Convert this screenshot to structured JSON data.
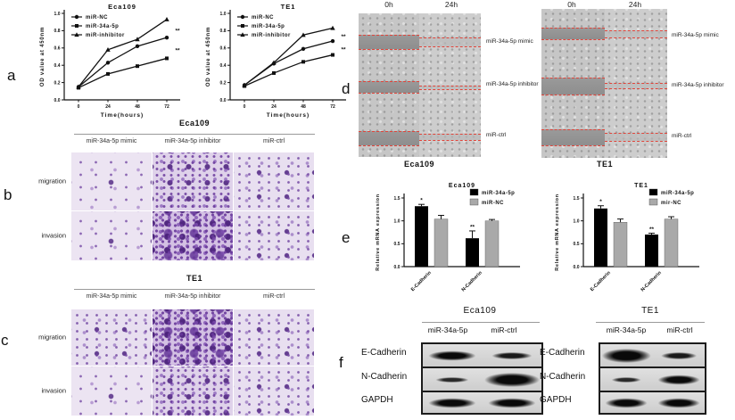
{
  "panels": {
    "a": {
      "letter": "a"
    },
    "b": {
      "letter": "b",
      "title": "Eca109",
      "column_labels": [
        "miR-34a-5p mimic",
        "miR-34a-5p inhibitor",
        "miR-ctrl"
      ],
      "row_labels": [
        "migration",
        "invasion"
      ],
      "staining_density": [
        [
          "sparse",
          "dense",
          "medium"
        ],
        [
          "sparse",
          "verydense",
          "medium"
        ]
      ]
    },
    "c": {
      "letter": "c",
      "title": "TE1",
      "column_labels": [
        "miR-34a-5p mimic",
        "miR-34a-5p inhibitor",
        "miR-ctrl"
      ],
      "row_labels": [
        "migration",
        "invasion"
      ],
      "staining_density": [
        [
          "medium",
          "verydense",
          "medium"
        ],
        [
          "sparse",
          "dense",
          "medium"
        ]
      ]
    },
    "d": {
      "letter": "d",
      "blocks": [
        {
          "cell_line": "Eca109",
          "time_labels": [
            "0h",
            "24h"
          ],
          "condition_labels": [
            "miR-34a-5p mimic",
            "miR-34a-5p inhibitor",
            "miR-ctrl"
          ]
        },
        {
          "cell_line": "TE1",
          "time_labels": [
            "0h",
            "24h"
          ],
          "condition_labels": [
            "miR-34a-5p mimic",
            "miR-34a-5p inhibitor",
            "miR-ctrl"
          ]
        }
      ]
    },
    "e": {
      "letter": "e"
    },
    "f": {
      "letter": "f",
      "blots": [
        {
          "cell_line": "Eca109",
          "lane_labels": [
            "miR-34a-5p",
            "miR-ctrl"
          ],
          "rows": [
            {
              "protein": "E-Cadherin",
              "band_intensity": [
                "strong",
                "medium"
              ]
            },
            {
              "protein": "N-Cadherin",
              "band_intensity": [
                "weak",
                "verystrong"
              ]
            },
            {
              "protein": "GAPDH",
              "band_intensity": [
                "strong",
                "strong"
              ]
            }
          ]
        },
        {
          "cell_line": "TE1",
          "lane_labels": [
            "miR-34a-5p",
            "miR-ctrl"
          ],
          "rows": [
            {
              "protein": "E-Cadherin",
              "band_intensity": [
                "verystrong",
                "medium"
              ]
            },
            {
              "protein": "N-Cadherin",
              "band_intensity": [
                "weak",
                "strong"
              ]
            },
            {
              "protein": "GAPDH",
              "band_intensity": [
                "strong",
                "strong"
              ]
            }
          ]
        }
      ]
    }
  },
  "chart_data": [
    {
      "type": "line",
      "title": "Eca109",
      "xlabel": "Time(hours)",
      "ylabel": "OD value at 450nm",
      "x": [
        0,
        24,
        48,
        72
      ],
      "xticks": [
        "0",
        "24",
        "48",
        "72"
      ],
      "ylim": [
        0,
        1.0
      ],
      "yticks": [
        "0.0",
        "0.2",
        "0.4",
        "0.6",
        "0.8",
        "1.0"
      ],
      "grid": false,
      "legend_position": "top-left",
      "series": [
        {
          "name": "miR-NC",
          "marker": "circle",
          "values": [
            0.15,
            0.43,
            0.62,
            0.72
          ]
        },
        {
          "name": "miR-34a-5p",
          "marker": "square",
          "values": [
            0.14,
            0.3,
            0.39,
            0.48
          ]
        },
        {
          "name": "miR-inhibitor",
          "marker": "triangle",
          "values": [
            0.15,
            0.58,
            0.7,
            0.93
          ]
        }
      ],
      "annotations": [
        {
          "text": "**",
          "value": 0.8
        },
        {
          "text": "**",
          "value": 0.57
        }
      ]
    },
    {
      "type": "line",
      "title": "TE1",
      "xlabel": "Time(hours)",
      "ylabel": "OD value at 450nm",
      "x": [
        0,
        24,
        48,
        72
      ],
      "xticks": [
        "0",
        "24",
        "48",
        "72"
      ],
      "ylim": [
        0,
        1.0
      ],
      "yticks": [
        "0.0",
        "0.2",
        "0.4",
        "0.6",
        "0.8",
        "1.0"
      ],
      "grid": false,
      "legend_position": "top-left",
      "series": [
        {
          "name": "miR-NC",
          "marker": "circle",
          "values": [
            0.17,
            0.42,
            0.59,
            0.68
          ]
        },
        {
          "name": "miR-34a-5p",
          "marker": "square",
          "values": [
            0.16,
            0.31,
            0.44,
            0.52
          ]
        },
        {
          "name": "miR-inhibitor",
          "marker": "triangle",
          "values": [
            0.17,
            0.43,
            0.75,
            0.83
          ]
        }
      ],
      "annotations": [
        {
          "text": "**",
          "value": 0.73
        },
        {
          "text": "**",
          "value": 0.58
        }
      ]
    },
    {
      "type": "bar",
      "title": "Eca109",
      "xlabel": "",
      "ylabel": "Relative mRNA expression",
      "categories": [
        "E-Cadherin",
        "N-Cadherin"
      ],
      "ylim": [
        0,
        1.5
      ],
      "yticks": [
        "0.0",
        "0.5",
        "1.0",
        "1.5"
      ],
      "grid": false,
      "legend_position": "top-right",
      "series": [
        {
          "name": "miR-34a-5p",
          "color": "#000000",
          "values": [
            1.32,
            0.62
          ],
          "errors": [
            0.04,
            0.16
          ],
          "sig": [
            "*",
            "**"
          ]
        },
        {
          "name": "miR-NC",
          "color": "#a9a9a9",
          "values": [
            1.04,
            1.0
          ],
          "errors": [
            0.08,
            0.03
          ],
          "sig": [
            "",
            ""
          ]
        }
      ]
    },
    {
      "type": "bar",
      "title": "TE1",
      "xlabel": "",
      "ylabel": "Relative mRNA expression",
      "categories": [
        "E-Cadherin",
        "N-Cadherin"
      ],
      "ylim": [
        0,
        1.5
      ],
      "yticks": [
        "0.0",
        "0.5",
        "1.0",
        "1.5"
      ],
      "grid": false,
      "legend_position": "top-right",
      "series": [
        {
          "name": "miR-34a-5p",
          "color": "#000000",
          "values": [
            1.27,
            0.7
          ],
          "errors": [
            0.06,
            0.03
          ],
          "sig": [
            "*",
            "**"
          ]
        },
        {
          "name": "mir-NC",
          "color": "#a9a9a9",
          "values": [
            0.97,
            1.04
          ],
          "errors": [
            0.07,
            0.05
          ],
          "sig": [
            "",
            ""
          ]
        }
      ]
    }
  ],
  "colors": {
    "significance": "#111111",
    "bar_primary": "#000000",
    "bar_secondary": "#a9a9a9",
    "wound_line_red": "#e0443a",
    "crystal_violet": "#8a5cb8"
  }
}
